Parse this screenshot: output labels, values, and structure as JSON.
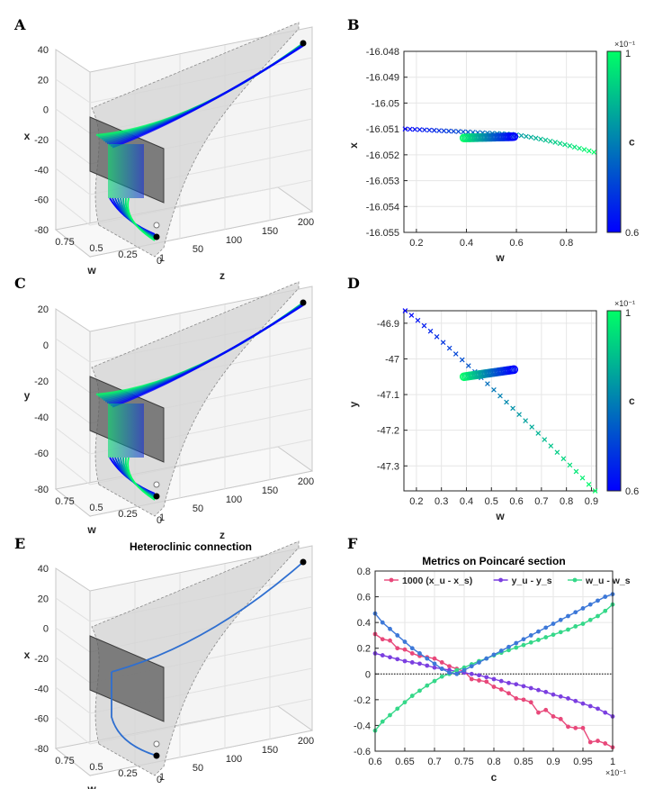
{
  "panels": {
    "A": {
      "letter": "A",
      "type": "3d",
      "axes": {
        "xlabel": "x",
        "wlabel": "w",
        "zlabel": "z",
        "vticks": [
          "40",
          "20",
          "0",
          "-20",
          "-40",
          "-60",
          "-80"
        ],
        "wticks": [
          "0.75",
          "0.5",
          "0.25",
          "0"
        ],
        "zticks": [
          "1",
          "50",
          "100",
          "150",
          "200"
        ]
      }
    },
    "B": {
      "letter": "B"
    },
    "C": {
      "letter": "C",
      "type": "3d",
      "axes": {
        "xlabel": "y",
        "wlabel": "w",
        "zlabel": "z",
        "vticks": [
          "20",
          "0",
          "-20",
          "-40",
          "-60",
          "-80"
        ],
        "wticks": [
          "0.75",
          "0.5",
          "0.25",
          "0"
        ],
        "zticks": [
          "1",
          "50",
          "100",
          "150",
          "200"
        ]
      }
    },
    "D": {
      "letter": "D"
    },
    "E": {
      "letter": "E",
      "type": "3d",
      "title": "Heteroclinic connection",
      "axes": {
        "xlabel": "x",
        "wlabel": "w",
        "zlabel": "z",
        "vticks": [
          "40",
          "20",
          "0",
          "-20",
          "-40",
          "-60",
          "-80"
        ],
        "wticks": [
          "0.75",
          "0.5",
          "0.25",
          "0"
        ],
        "zticks": [
          "1",
          "50",
          "100",
          "150",
          "200"
        ]
      }
    },
    "F": {
      "letter": "F"
    }
  },
  "chart_data": [
    {
      "id": "B",
      "type": "scatter",
      "xlabel": "w",
      "ylabel": "x",
      "xlim": [
        0.15,
        0.92
      ],
      "ylim": [
        -16.055,
        -16.048
      ],
      "xticks": [
        0.2,
        0.4,
        0.6,
        0.8
      ],
      "xticklabels": [
        "0.2",
        "0.4",
        "0.6",
        "0.8"
      ],
      "yticks": [
        -16.048,
        -16.049,
        -16.05,
        -16.051,
        -16.052,
        -16.053,
        -16.054,
        -16.055
      ],
      "yticklabels": [
        "-16.048",
        "-16.049",
        "-16.05",
        "-16.051",
        "-16.052",
        "-16.053",
        "-16.054",
        "-16.055"
      ],
      "colorbar": {
        "label": "c",
        "min_label": "0.6",
        "max_label": "1",
        "exponent": "×10⁻¹",
        "min": 0.6,
        "max": 1.0
      },
      "crosses": {
        "w_start": 0.155,
        "w_end": 0.91,
        "n": 40,
        "y_start": -16.051,
        "y_mid": -16.0512,
        "y_end": -16.0519,
        "c_min": 0.6,
        "c_max": 1.0
      },
      "circles": {
        "w_start": 0.39,
        "w_end": 0.59,
        "n": 41,
        "y_start": -16.05135,
        "y_end": -16.0513,
        "c_start": 1.0,
        "c_end": 0.6
      }
    },
    {
      "id": "D",
      "type": "scatter",
      "xlabel": "w",
      "ylabel": "y",
      "xlim": [
        0.15,
        0.92
      ],
      "ylim": [
        -47.37,
        -46.865
      ],
      "xticks": [
        0.2,
        0.3,
        0.4,
        0.5,
        0.6,
        0.7,
        0.8,
        0.9
      ],
      "xticklabels": [
        "0.2",
        "0.3",
        "0.4",
        "0.5",
        "0.6",
        "0.7",
        "0.8",
        "0.9"
      ],
      "yticks": [
        -46.9,
        -47.0,
        -47.1,
        -47.2,
        -47.3
      ],
      "yticklabels": [
        "-46.9",
        "-47",
        "-47.1",
        "-47.2",
        "-47.3"
      ],
      "colorbar": {
        "label": "c",
        "min_label": "0.6",
        "max_label": "1",
        "exponent": "×10⁻¹",
        "min": 0.6,
        "max": 1.0
      },
      "crosses": {
        "w_start": 0.155,
        "w_end": 0.915,
        "n": 31,
        "y_start": -46.865,
        "y_end": -47.37,
        "c_min": 0.6,
        "c_max": 1.0
      },
      "circles": {
        "w_start": 0.39,
        "w_end": 0.59,
        "n": 41,
        "y_start": -47.05,
        "y_end": -47.03,
        "c_start": 1.0,
        "c_end": 0.6
      }
    },
    {
      "id": "F",
      "type": "line",
      "title": "Metrics on Poincaré section",
      "xlabel": "c",
      "x_exponent": "×10⁻¹",
      "xlim": [
        0.6,
        1.0
      ],
      "ylim": [
        -0.6,
        0.8
      ],
      "xticks": [
        0.6,
        0.65,
        0.7,
        0.75,
        0.8,
        0.85,
        0.9,
        0.95,
        1.0
      ],
      "xticklabels": [
        "0.6",
        "0.65",
        "0.7",
        "0.75",
        "0.8",
        "0.85",
        "0.9",
        "0.95",
        "1"
      ],
      "yticks": [
        -0.6,
        -0.4,
        -0.2,
        0,
        0.2,
        0.4,
        0.6,
        0.8
      ],
      "yticklabels": [
        "-0.6",
        "-0.4",
        "-0.2",
        "0",
        "0.2",
        "0.4",
        "0.6",
        "0.8"
      ],
      "zero_line": true,
      "x": [
        0.6,
        0.6125,
        0.625,
        0.6375,
        0.65,
        0.6625,
        0.675,
        0.6875,
        0.7,
        0.7125,
        0.725,
        0.7375,
        0.75,
        0.7625,
        0.775,
        0.7875,
        0.8,
        0.8125,
        0.825,
        0.8375,
        0.85,
        0.8625,
        0.875,
        0.8875,
        0.9,
        0.9125,
        0.925,
        0.9375,
        0.95,
        0.9625,
        0.975,
        0.9875,
        1.0
      ],
      "series": [
        {
          "name": "1000 (x_u - x_s)",
          "color": "#e8487a",
          "values": [
            0.31,
            0.27,
            0.26,
            0.2,
            0.19,
            0.16,
            0.14,
            0.13,
            0.12,
            0.09,
            0.06,
            0.04,
            0.02,
            -0.04,
            -0.05,
            -0.06,
            -0.1,
            -0.12,
            -0.15,
            -0.19,
            -0.2,
            -0.22,
            -0.3,
            -0.28,
            -0.33,
            -0.35,
            -0.41,
            -0.42,
            -0.42,
            -0.53,
            -0.52,
            -0.54,
            -0.57
          ]
        },
        {
          "name": "y_u - y_s",
          "color": "#7b3fe0",
          "values": [
            0.16,
            0.145,
            0.13,
            0.115,
            0.1,
            0.09,
            0.08,
            0.065,
            0.05,
            0.04,
            0.03,
            0.02,
            0.01,
            0.0,
            -0.01,
            -0.025,
            -0.04,
            -0.055,
            -0.07,
            -0.08,
            -0.095,
            -0.11,
            -0.125,
            -0.14,
            -0.16,
            -0.175,
            -0.19,
            -0.21,
            -0.23,
            -0.25,
            -0.27,
            -0.3,
            -0.33
          ]
        },
        {
          "name": "w_u - w_s",
          "color": "#35d889",
          "values": [
            -0.44,
            -0.37,
            -0.32,
            -0.27,
            -0.22,
            -0.17,
            -0.13,
            -0.09,
            -0.055,
            -0.02,
            0.0,
            0.03,
            0.05,
            0.075,
            0.1,
            0.12,
            0.145,
            0.165,
            0.185,
            0.205,
            0.225,
            0.245,
            0.265,
            0.285,
            0.305,
            0.325,
            0.345,
            0.37,
            0.39,
            0.42,
            0.45,
            0.49,
            0.54
          ]
        },
        {
          "name": "",
          "color": "#3d78d8",
          "legend": false,
          "values": [
            0.47,
            0.4,
            0.35,
            0.3,
            0.25,
            0.2,
            0.16,
            0.12,
            0.08,
            0.04,
            0.01,
            0.0,
            0.03,
            0.06,
            0.09,
            0.12,
            0.15,
            0.18,
            0.21,
            0.24,
            0.27,
            0.3,
            0.33,
            0.36,
            0.39,
            0.42,
            0.45,
            0.48,
            0.51,
            0.54,
            0.57,
            0.6,
            0.62
          ]
        }
      ]
    }
  ]
}
